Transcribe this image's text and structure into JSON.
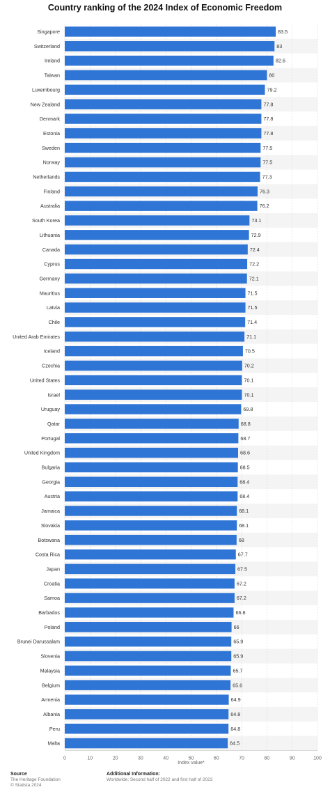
{
  "chart_data": {
    "type": "bar",
    "orientation": "horizontal",
    "title": "Country ranking of the 2024 Index of Economic Freedom",
    "xlabel": "Index value*",
    "xlim": [
      0,
      100
    ],
    "xticks": [
      0,
      10,
      20,
      30,
      40,
      50,
      60,
      70,
      80,
      90,
      100
    ],
    "grid": true,
    "bar_color": "#2f75d6",
    "categories": [
      "Singapore",
      "Switzerland",
      "Ireland",
      "Taiwan",
      "Luxembourg",
      "New Zealand",
      "Denmark",
      "Estonia",
      "Sweden",
      "Norway",
      "Netherlands",
      "Finland",
      "Australia",
      "South Korea",
      "Lithuania",
      "Canada",
      "Cyprus",
      "Germany",
      "Mauritius",
      "Latvia",
      "Chile",
      "United Arab Emirates",
      "Iceland",
      "Czechia",
      "United States",
      "Israel",
      "Uruguay",
      "Qatar",
      "Portugal",
      "United Kingdom",
      "Bulgaria",
      "Georgia",
      "Austria",
      "Jamaica",
      "Slovakia",
      "Botswana",
      "Costa Rica",
      "Japan",
      "Croatia",
      "Samoa",
      "Barbados",
      "Poland",
      "Brunei Darussalam",
      "Slovenia",
      "Malaysia",
      "Belgium",
      "Armenia",
      "Albania",
      "Peru",
      "Malta"
    ],
    "values": [
      83.5,
      83,
      82.6,
      80,
      79.2,
      77.8,
      77.8,
      77.8,
      77.5,
      77.5,
      77.3,
      76.3,
      76.2,
      73.1,
      72.9,
      72.4,
      72.2,
      72.1,
      71.5,
      71.5,
      71.4,
      71.1,
      70.5,
      70.2,
      70.1,
      70.1,
      69.8,
      68.8,
      68.7,
      68.6,
      68.5,
      68.4,
      68.4,
      68.1,
      68.1,
      68,
      67.7,
      67.5,
      67.2,
      67.2,
      66.8,
      66,
      65.9,
      65.9,
      65.7,
      65.6,
      64.9,
      64.8,
      64.8,
      64.5
    ]
  },
  "footer": {
    "source_heading": "Source",
    "source_line1": "The Heritage Foundation",
    "source_line2": "© Statista 2024",
    "info_heading": "Additional Information:",
    "info_line1": "Worldwide; Second half of 2022 and first half of 2023"
  }
}
